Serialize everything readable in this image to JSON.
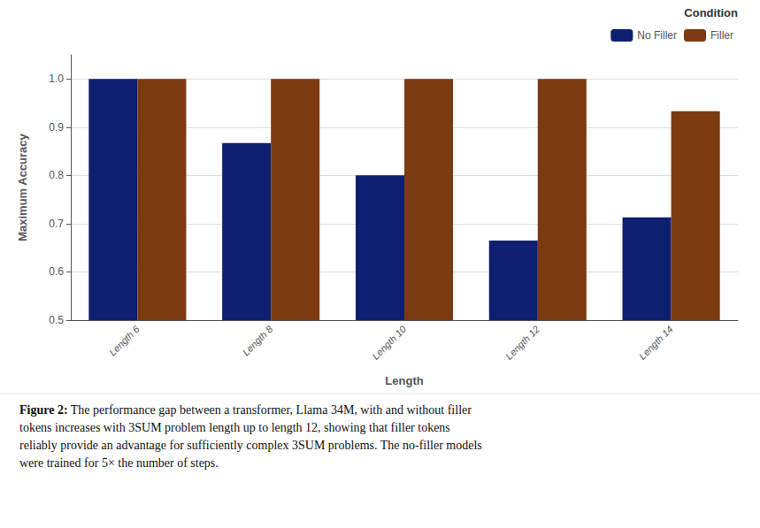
{
  "chart_data": {
    "type": "bar",
    "xlabel": "Length",
    "ylabel": "Maximum Accuracy",
    "categories": [
      "Length 6",
      "Length 8",
      "Length 10",
      "Length 12",
      "Length 14"
    ],
    "series": [
      {
        "name": "No Filler",
        "color": "#0d1f6e",
        "values": [
          1.0,
          0.867,
          0.8,
          0.665,
          0.713
        ]
      },
      {
        "name": "Filler",
        "color": "#7b3a10",
        "values": [
          1.0,
          1.0,
          1.0,
          1.0,
          0.933
        ]
      }
    ],
    "ylim": [
      0.5,
      1.05
    ],
    "yticks": [
      0.5,
      0.6,
      0.7,
      0.8,
      0.9,
      {
        "value": 1.0,
        "label": "1.0"
      }
    ],
    "grid": true,
    "legend": "top-right",
    "legend_title": "Condition",
    "caption_label": "Figure 2:",
    "caption": " The performance gap between a transformer, Llama 34M, with and without filler\ntokens increases with 3SUM problem length up to length 12, showing that filler tokens\nreliably provide an advantage for sufficiently complex 3SUM problems. The no-filler models\nwere trained for 5× the number of steps."
  }
}
